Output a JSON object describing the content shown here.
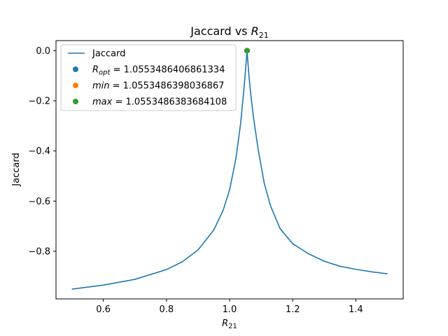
{
  "chart_data": {
    "type": "line",
    "title_prefix": "Jaccard vs ",
    "title_var": "R",
    "title_sub": "21",
    "xlabel_var": "R",
    "xlabel_sub": "21",
    "ylabel": "Jaccard",
    "xlim": [
      0.45,
      1.55
    ],
    "ylim": [
      -0.99,
      0.04
    ],
    "xticks": [
      0.6,
      0.8,
      1.0,
      1.2,
      1.4
    ],
    "xtick_labels": [
      "0.6",
      "0.8",
      "1.0",
      "1.2",
      "1.4"
    ],
    "yticks": [
      -0.8,
      -0.6,
      -0.4,
      -0.2,
      0.0
    ],
    "ytick_labels": [
      "−0.8",
      "−0.6",
      "−0.4",
      "−0.2",
      "0.0"
    ],
    "grid": false,
    "legend_position": "upper-left",
    "series": [
      {
        "name": "Jaccard",
        "color": "#1f77b4",
        "x": [
          0.5,
          0.6,
          0.7,
          0.8,
          0.85,
          0.9,
          0.95,
          0.98,
          1.0,
          1.02,
          1.035,
          1.045,
          1.05,
          1.0553,
          1.06,
          1.065,
          1.075,
          1.09,
          1.11,
          1.13,
          1.16,
          1.2,
          1.25,
          1.3,
          1.35,
          1.4,
          1.45,
          1.5
        ],
        "y": [
          -0.951,
          -0.935,
          -0.912,
          -0.873,
          -0.842,
          -0.795,
          -0.715,
          -0.635,
          -0.555,
          -0.43,
          -0.29,
          -0.16,
          -0.085,
          0.0,
          -0.08,
          -0.15,
          -0.26,
          -0.39,
          -0.53,
          -0.62,
          -0.71,
          -0.77,
          -0.81,
          -0.84,
          -0.86,
          -0.872,
          -0.882,
          -0.89
        ]
      }
    ],
    "points": [
      {
        "label_var": "R",
        "label_sub": "opt",
        "label_value": " = 1.0553486406861334",
        "x": 1.0553486406861334,
        "y": 0.0,
        "color": "#1f77b4"
      },
      {
        "label_var": "min",
        "label_sub": "",
        "label_value": " = 1.0553486398036867",
        "x": 1.0553486398036867,
        "y": 0.0,
        "color": "#ff7f0e"
      },
      {
        "label_var": "max",
        "label_sub": "",
        "label_value": " = 1.0553486383684108",
        "x": 1.0553486383684108,
        "y": 0.0,
        "color": "#2ca02c"
      }
    ]
  }
}
